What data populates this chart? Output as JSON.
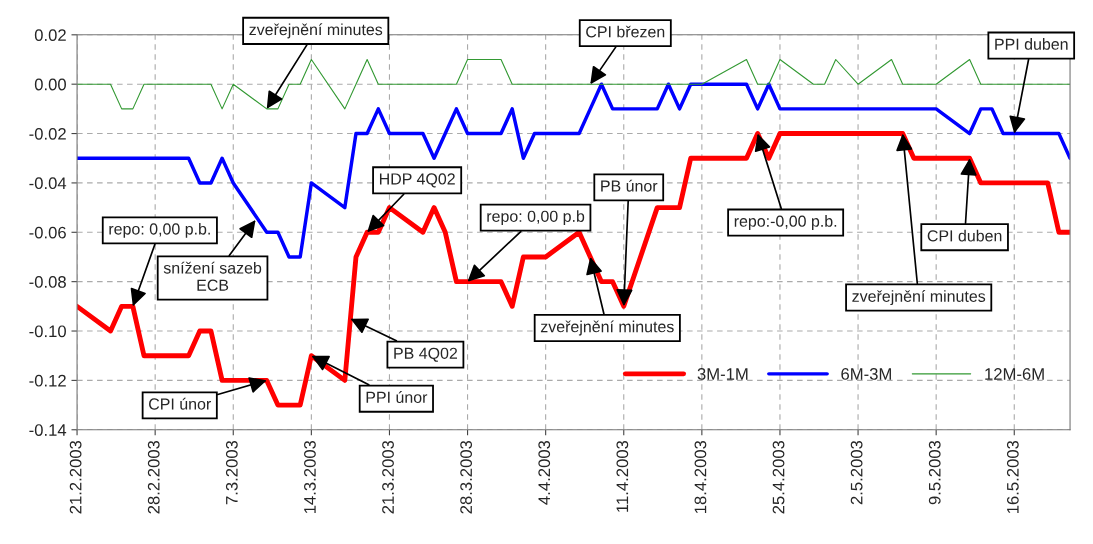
{
  "chart_data": {
    "type": "line",
    "x": [
      "2003-02-21",
      "2003-02-24",
      "2003-02-25",
      "2003-02-26",
      "2003-02-27",
      "2003-02-28",
      "2003-03-03",
      "2003-03-04",
      "2003-03-05",
      "2003-03-06",
      "2003-03-07",
      "2003-03-10",
      "2003-03-11",
      "2003-03-12",
      "2003-03-13",
      "2003-03-14",
      "2003-03-17",
      "2003-03-18",
      "2003-03-19",
      "2003-03-20",
      "2003-03-21",
      "2003-03-24",
      "2003-03-25",
      "2003-03-26",
      "2003-03-27",
      "2003-03-28",
      "2003-03-31",
      "2003-04-01",
      "2003-04-02",
      "2003-04-03",
      "2003-04-04",
      "2003-04-07",
      "2003-04-08",
      "2003-04-09",
      "2003-04-10",
      "2003-04-11",
      "2003-04-14",
      "2003-04-15",
      "2003-04-16",
      "2003-04-17",
      "2003-04-18",
      "2003-04-22",
      "2003-04-23",
      "2003-04-24",
      "2003-04-25",
      "2003-04-28",
      "2003-04-29",
      "2003-04-30",
      "2003-05-02",
      "2003-05-05",
      "2003-05-06",
      "2003-05-07",
      "2003-05-09",
      "2003-05-12",
      "2003-05-13",
      "2003-05-14",
      "2003-05-15",
      "2003-05-16",
      "2003-05-19",
      "2003-05-20",
      "2003-05-21"
    ],
    "series": [
      {
        "name": "3M-1M",
        "color": "#ff0000",
        "values": [
          -0.09,
          -0.1,
          -0.09,
          -0.09,
          -0.11,
          -0.11,
          -0.11,
          -0.1,
          -0.1,
          -0.12,
          -0.12,
          -0.12,
          -0.13,
          -0.13,
          -0.13,
          -0.11,
          -0.12,
          -0.07,
          -0.06,
          -0.06,
          -0.05,
          -0.06,
          -0.05,
          -0.06,
          -0.08,
          -0.08,
          -0.08,
          -0.09,
          -0.07,
          -0.07,
          -0.07,
          -0.06,
          -0.07,
          -0.08,
          -0.08,
          -0.09,
          -0.05,
          -0.05,
          -0.05,
          -0.03,
          -0.03,
          -0.03,
          -0.02,
          -0.03,
          -0.02,
          -0.02,
          -0.02,
          -0.02,
          -0.02,
          -0.02,
          -0.02,
          -0.03,
          -0.03,
          -0.03,
          -0.04,
          -0.04,
          -0.04,
          -0.04,
          -0.04,
          -0.06,
          -0.06
        ]
      },
      {
        "name": "6M-3M",
        "color": "#0000ff",
        "values": [
          -0.03,
          -0.03,
          -0.03,
          -0.03,
          -0.03,
          -0.03,
          -0.03,
          -0.04,
          -0.04,
          -0.03,
          -0.04,
          -0.06,
          -0.06,
          -0.07,
          -0.07,
          -0.04,
          -0.05,
          -0.02,
          -0.02,
          -0.01,
          -0.02,
          -0.02,
          -0.03,
          -0.02,
          -0.01,
          -0.02,
          -0.02,
          -0.01,
          -0.03,
          -0.02,
          -0.02,
          -0.02,
          -0.01,
          0.0,
          -0.01,
          -0.01,
          -0.01,
          0.0,
          -0.01,
          0.0,
          0.0,
          0.0,
          -0.01,
          0.0,
          -0.01,
          -0.01,
          -0.01,
          -0.01,
          -0.01,
          -0.01,
          -0.01,
          -0.01,
          -0.01,
          -0.02,
          -0.01,
          -0.01,
          -0.02,
          -0.02,
          -0.02,
          -0.02,
          -0.03
        ]
      },
      {
        "name": "12M-6M",
        "color": "#339933",
        "values": [
          0.0,
          0.0,
          -0.01,
          -0.01,
          0.0,
          0.0,
          0.0,
          0.0,
          0.0,
          -0.01,
          0.0,
          -0.01,
          -0.01,
          0.0,
          0.0,
          0.01,
          -0.01,
          0.0,
          0.01,
          0.0,
          0.0,
          0.0,
          0.0,
          0.0,
          0.0,
          0.01,
          0.01,
          0.0,
          0.0,
          0.0,
          0.0,
          0.0,
          0.0,
          0.0,
          0.0,
          0.0,
          0.0,
          0.0,
          0.0,
          0.0,
          0.0,
          0.01,
          0.0,
          0.0,
          0.01,
          0.0,
          0.0,
          0.01,
          0.0,
          0.01,
          0.0,
          0.0,
          0.0,
          0.01,
          0.0,
          0.0,
          0.0,
          0.0,
          0.0,
          0.0,
          0.0
        ]
      }
    ],
    "xlim": [
      "2003-02-21",
      "2003-05-21"
    ],
    "xticks": [
      {
        "value": "2003-02-21",
        "label": "21.2.2003"
      },
      {
        "value": "2003-02-28",
        "label": "28.2.2003"
      },
      {
        "value": "2003-03-07",
        "label": "7.3.2003"
      },
      {
        "value": "2003-03-14",
        "label": "14.3.2003"
      },
      {
        "value": "2003-03-21",
        "label": "21.3.2003"
      },
      {
        "value": "2003-03-28",
        "label": "28.3.2003"
      },
      {
        "value": "2003-04-04",
        "label": "4.4.2003"
      },
      {
        "value": "2003-04-11",
        "label": "11.4.2003"
      },
      {
        "value": "2003-04-18",
        "label": "18.4.2003"
      },
      {
        "value": "2003-04-25",
        "label": "25.4.2003"
      },
      {
        "value": "2003-05-02",
        "label": "2.5.2003"
      },
      {
        "value": "2003-05-09",
        "label": "9.5.2003"
      },
      {
        "value": "2003-05-16",
        "label": "16.5.2003"
      }
    ],
    "ylim": [
      -0.14,
      0.02
    ],
    "yticks": [
      {
        "value": 0.02,
        "label": "0.02"
      },
      {
        "value": 0.0,
        "label": "0.00"
      },
      {
        "value": -0.02,
        "label": "-0.02"
      },
      {
        "value": -0.04,
        "label": "-0.04"
      },
      {
        "value": -0.06,
        "label": "-0.06"
      },
      {
        "value": -0.08,
        "label": "-0.08"
      },
      {
        "value": -0.1,
        "label": "-0.10"
      },
      {
        "value": -0.12,
        "label": "-0.12"
      },
      {
        "value": -0.14,
        "label": "-0.14"
      }
    ],
    "grid": true,
    "legend": "bottom right",
    "annotations": [
      {
        "text": "zveřejnění minutes",
        "x": "2003-03-10",
        "y": -0.01
      },
      {
        "text": "CPI březen",
        "x": "2003-04-08",
        "y": 0.0
      },
      {
        "text": "PPI duben",
        "x": "2003-05-16",
        "y": -0.02
      },
      {
        "text": "HDP 4Q02",
        "x": "2003-03-19",
        "y": -0.06
      },
      {
        "text": "repo: 0,00 p.b.",
        "x": "2003-02-26",
        "y": -0.09
      },
      {
        "text": "snížení sazeb\nECB",
        "x": "2003-03-09",
        "y": -0.055
      },
      {
        "text": "CPI únor",
        "x": "2003-03-10",
        "y": -0.12
      },
      {
        "text": "PPI únor",
        "x": "2003-03-14",
        "y": -0.11
      },
      {
        "text": "PB 4Q02",
        "x": "2003-03-17T12:00",
        "y": -0.095
      },
      {
        "text": "repo: 0,00 p.b",
        "x": "2003-03-28",
        "y": -0.08
      },
      {
        "text": "PB únor",
        "x": "2003-04-11",
        "y": -0.09
      },
      {
        "text": "zveřejnění minutes",
        "x": "2003-04-08",
        "y": -0.07
      },
      {
        "text": "repo:-0,00 p.b.",
        "x": "2003-04-23",
        "y": -0.02
      },
      {
        "text": "CPI duben",
        "x": "2003-05-12",
        "y": -0.03
      },
      {
        "text": "zveřejnění minutes",
        "x": "2003-05-06",
        "y": -0.02
      }
    ]
  }
}
